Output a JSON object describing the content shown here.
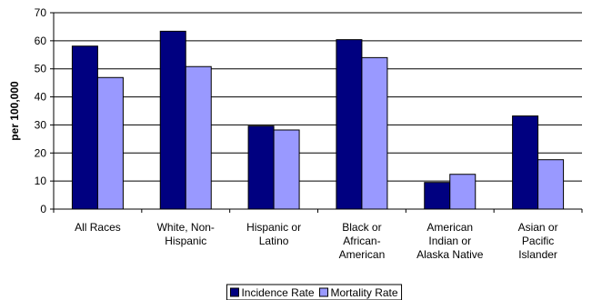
{
  "chart_data": {
    "type": "bar",
    "title": "",
    "xlabel": "",
    "ylabel": "per 100,000",
    "ylim": [
      0,
      70
    ],
    "yticks": [
      0,
      10,
      20,
      30,
      40,
      50,
      60,
      70
    ],
    "grid": true,
    "legend_position": "bottom",
    "categories": [
      [
        "All Races"
      ],
      [
        "White, Non-",
        "Hispanic"
      ],
      [
        "Hispanic or",
        "Latino"
      ],
      [
        "Black or",
        "African-",
        "American"
      ],
      [
        "American",
        "Indian or",
        "Alaska Native"
      ],
      [
        "Asian or",
        "Pacific",
        "Islander"
      ]
    ],
    "series": [
      {
        "name": "Incidence Rate",
        "color": "#000080",
        "values": [
          58.1,
          63.4,
          29.6,
          60.4,
          9.5,
          33.2
        ]
      },
      {
        "name": "Mortality Rate",
        "color": "#9999ff",
        "values": [
          46.9,
          50.8,
          28.2,
          54.0,
          12.4,
          17.6
        ]
      }
    ]
  }
}
